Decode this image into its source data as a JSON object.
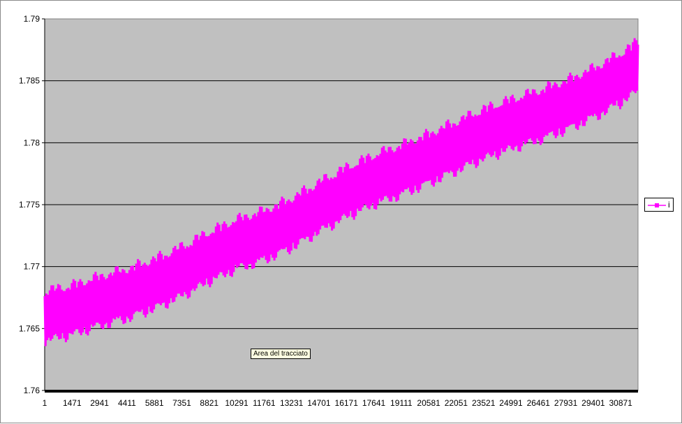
{
  "chart_data": {
    "type": "line",
    "title": "",
    "xlabel": "",
    "ylabel": "",
    "ylim": [
      1.76,
      1.79
    ],
    "y_ticks": [
      "1.76",
      "1.765",
      "1.77",
      "1.775",
      "1.78",
      "1.785",
      "1.79"
    ],
    "x_range": [
      1,
      31800
    ],
    "x_tick_values": [
      1,
      1471,
      2941,
      4411,
      5881,
      7351,
      8821,
      10291,
      11761,
      13231,
      14701,
      16171,
      17641,
      19111,
      20581,
      22051,
      23521,
      24991,
      26461,
      27931,
      29401,
      30871
    ],
    "grid": "horizontal",
    "legend": "right",
    "series": [
      {
        "name": "i",
        "color": "#ff00ff",
        "marker": "square",
        "x": [
          1,
          1471,
          2941,
          4411,
          5881,
          7351,
          8821,
          10291,
          11761,
          13231,
          14701,
          16171,
          17641,
          19111,
          20581,
          22051,
          23521,
          24991,
          26461,
          27931,
          29401,
          30871,
          31800
        ],
        "y_center": [
          1.766,
          1.7665,
          1.7672,
          1.7678,
          1.7686,
          1.7696,
          1.7708,
          1.7718,
          1.7725,
          1.7735,
          1.7748,
          1.776,
          1.777,
          1.7778,
          1.7787,
          1.7797,
          1.7807,
          1.7815,
          1.7822,
          1.783,
          1.784,
          1.7852,
          1.7862
        ],
        "band_half_width": 0.0025
      }
    ]
  },
  "tooltip": {
    "text": "Area del tracciato"
  }
}
